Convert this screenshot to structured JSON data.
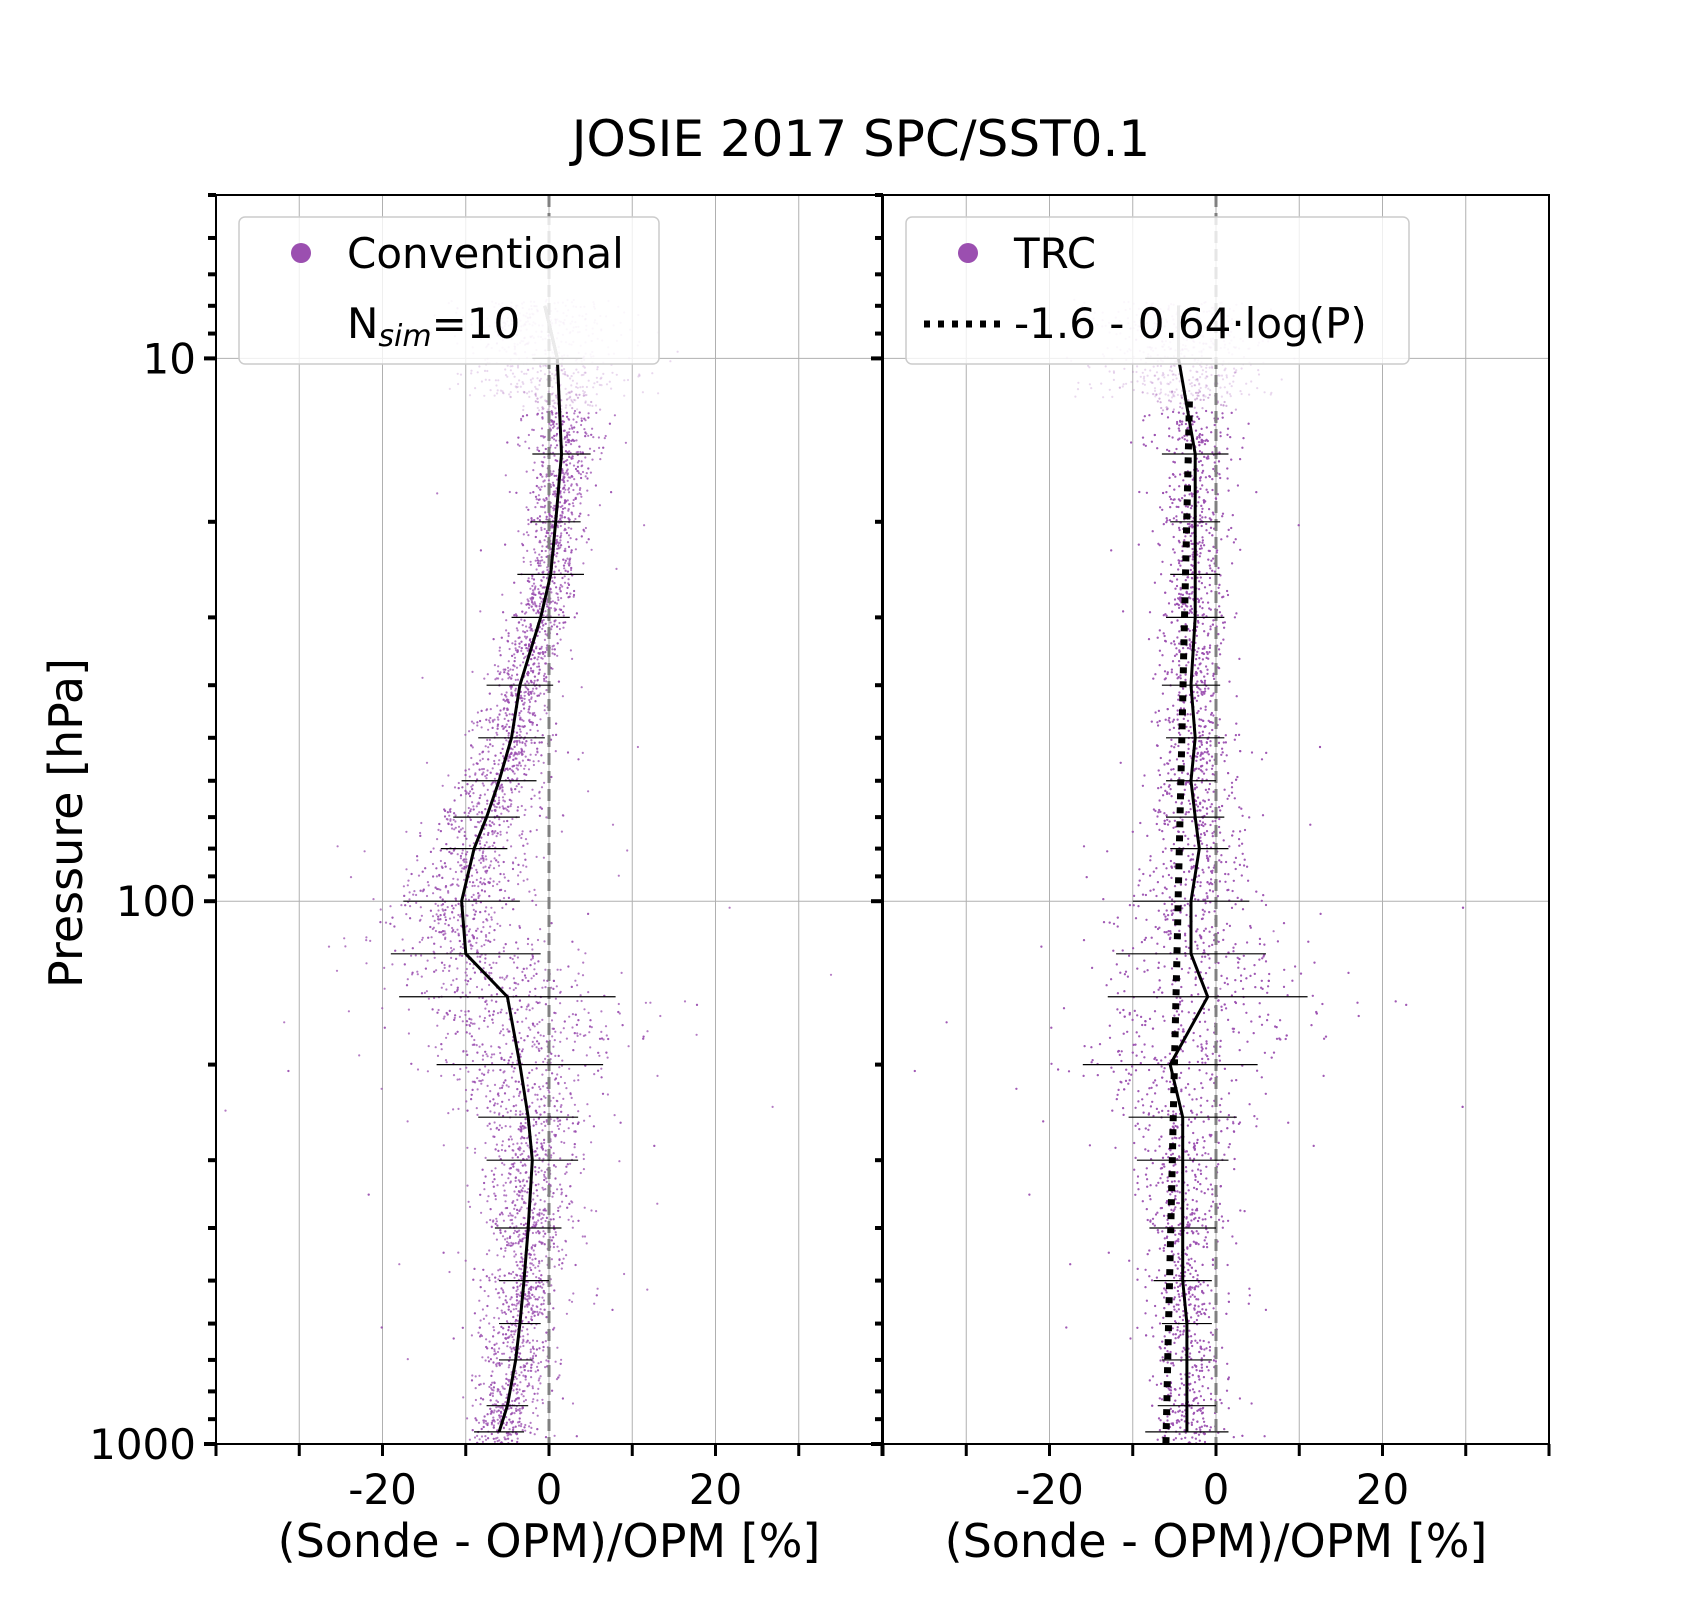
{
  "figure": {
    "title": "JOSIE 2017 SPC/SST0.1",
    "ylabel": "Pressure [hPa]",
    "xlabel": "(Sonde - OPM)/OPM [%]",
    "yticks": [
      10,
      100,
      1000
    ],
    "ytick_labels": [
      "10",
      "100",
      "1000"
    ],
    "xticks": [
      -20,
      0,
      20
    ],
    "xtick_labels": [
      "-20",
      "0",
      "20"
    ],
    "colors": {
      "points": "#9b4fb0",
      "median": "#000000",
      "zero_line": "#808080",
      "grid": "#b0b0b0"
    }
  },
  "chart_data": [
    {
      "type": "scatter",
      "panel": "left",
      "legend": {
        "location": "upper-left",
        "entries": [
          {
            "label": "Conventional",
            "sublabel_main": "N",
            "sublabel_sub": "sim",
            "sublabel_tail": "=10",
            "marker": "dot"
          }
        ]
      },
      "xlim": [
        -40,
        40
      ],
      "ylim": [
        1000,
        5
      ],
      "yscale": "log",
      "grid": true,
      "series": [
        {
          "name": "Conventional",
          "kind": "median_profile",
          "pressure": [
            8,
            10,
            15,
            20,
            25,
            30,
            40,
            50,
            60,
            70,
            80,
            100,
            125,
            150,
            200,
            250,
            300,
            400,
            500,
            600,
            700,
            850,
            950
          ],
          "median": [
            -0.5,
            1.0,
            1.5,
            0.8,
            0.2,
            -1.0,
            -3.5,
            -4.5,
            -6.0,
            -7.5,
            -9.0,
            -10.5,
            -10.0,
            -5.0,
            -3.5,
            -2.5,
            -2.0,
            -2.5,
            -3.0,
            -3.5,
            -4.0,
            -5.0,
            -6.0
          ],
          "spread_sd": [
            4.0,
            4.0,
            3.5,
            3.0,
            3.0,
            3.0,
            3.5,
            4.0,
            4.5,
            5.0,
            6.0,
            7.0,
            9.0,
            13.0,
            10.0,
            6.0,
            5.0,
            5.0,
            4.5,
            4.0,
            4.0,
            3.5,
            3.5
          ],
          "error_half_width": [
            3.0,
            3.0,
            3.5,
            3.0,
            4.0,
            3.5,
            4.0,
            4.0,
            4.5,
            4.0,
            4.0,
            7.0,
            9.0,
            13.0,
            10.0,
            6.0,
            5.5,
            4.0,
            3.0,
            2.5,
            2.0,
            2.5,
            3.0
          ]
        }
      ]
    },
    {
      "type": "scatter",
      "panel": "right",
      "legend": {
        "location": "upper-left",
        "entries": [
          {
            "label": "TRC",
            "marker": "dot"
          },
          {
            "label": "-1.6 - 0.64·log(P)",
            "marker": "dotted-line"
          }
        ]
      },
      "xlim": [
        -40,
        40
      ],
      "ylim": [
        1000,
        5
      ],
      "yscale": "log",
      "grid": true,
      "series": [
        {
          "name": "TRC",
          "kind": "median_profile",
          "pressure": [
            8,
            10,
            15,
            20,
            25,
            30,
            40,
            50,
            60,
            70,
            80,
            100,
            125,
            150,
            200,
            250,
            300,
            400,
            500,
            600,
            700,
            850,
            950
          ],
          "median": [
            -4.5,
            -4.5,
            -2.5,
            -2.5,
            -2.5,
            -2.5,
            -3.0,
            -2.5,
            -3.0,
            -2.5,
            -2.0,
            -3.0,
            -3.0,
            -1.0,
            -5.5,
            -4.0,
            -4.0,
            -4.0,
            -4.0,
            -3.5,
            -3.5,
            -3.5,
            -3.5
          ],
          "spread_sd": [
            5.0,
            5.0,
            4.0,
            3.5,
            3.5,
            3.5,
            3.5,
            4.0,
            4.0,
            4.5,
            5.0,
            7.0,
            10.0,
            14.0,
            11.0,
            7.0,
            5.0,
            4.5,
            4.0,
            3.5,
            3.5,
            3.5,
            3.5
          ],
          "error_half_width": [
            4.0,
            4.0,
            4.0,
            3.0,
            3.0,
            3.5,
            3.5,
            3.5,
            3.0,
            3.5,
            3.5,
            7.0,
            9.0,
            12.0,
            10.5,
            6.5,
            5.5,
            4.0,
            3.5,
            3.0,
            3.0,
            3.5,
            5.0
          ]
        },
        {
          "name": "-1.6 - 0.64·log(P)",
          "kind": "fit",
          "a": -1.6,
          "b": -0.64,
          "p_range": [
            12,
            1000
          ]
        }
      ]
    }
  ]
}
